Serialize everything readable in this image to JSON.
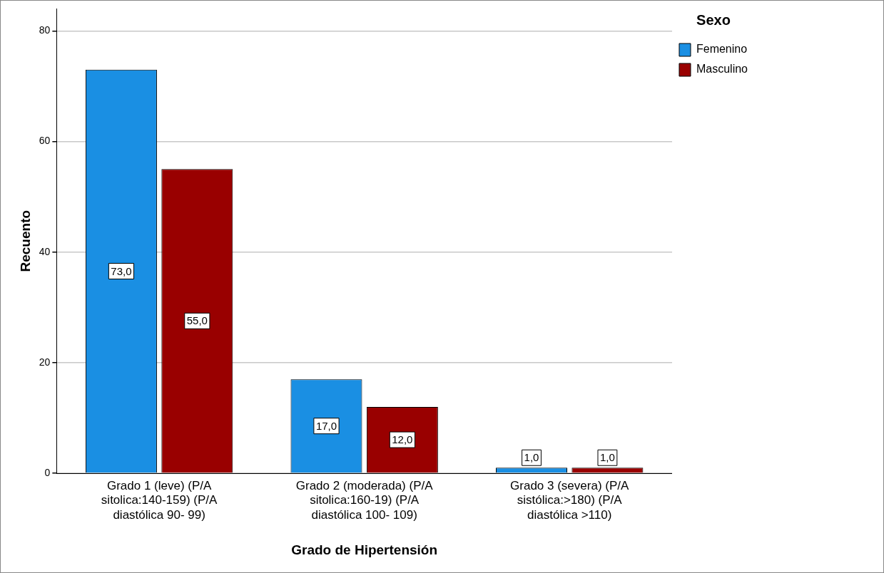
{
  "chart_data": {
    "type": "bar",
    "xlabel": "Grado de Hipertensión",
    "ylabel": "Recuento",
    "legend_title": "Sexo",
    "categories": [
      "Grado 1 (leve) (P/A sitolica:140-159) (P/A diastólica 90- 99)",
      "Grado 2 (moderada) (P/A sitolica:160-19) (P/A diastólica 100- 109)",
      "Grado 3 (severa) (P/A sistólica:>180) (P/A diastólica >110)"
    ],
    "series": [
      {
        "name": "Femenino",
        "color": "#1a8fe3",
        "values": [
          73,
          17,
          1
        ],
        "value_labels": [
          "73,0",
          "17,0",
          "1,0"
        ]
      },
      {
        "name": "Masculino",
        "color": "#990000",
        "values": [
          55,
          12,
          1
        ],
        "value_labels": [
          "55,0",
          "12,0",
          "1,0"
        ]
      }
    ],
    "ylim": [
      0,
      84
    ],
    "yticks": [
      0,
      20,
      40,
      60,
      80
    ],
    "grid": "y",
    "legend": "top right"
  }
}
